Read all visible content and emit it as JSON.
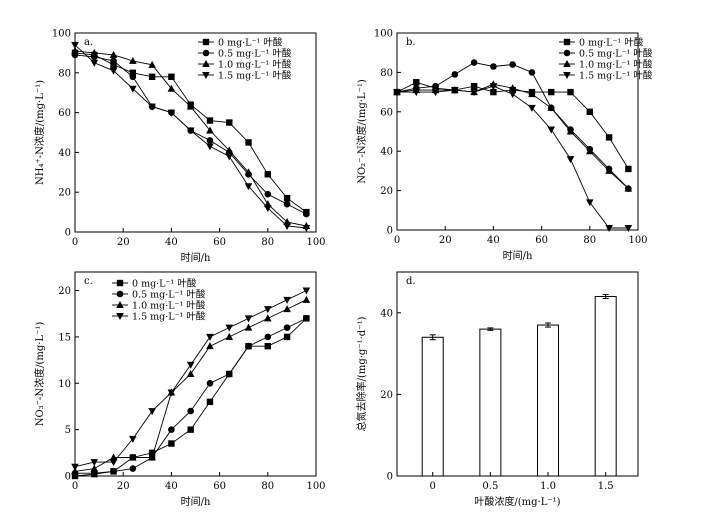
{
  "chart_data": [
    {
      "id": "a",
      "type": "line",
      "panel_label": "a.",
      "xlabel": "时间/h",
      "ylabel": "NH₄⁺-N浓度/(mg·L⁻¹)",
      "xlim": [
        0,
        100
      ],
      "ylim": [
        0,
        100
      ],
      "xticks": [
        0,
        20,
        40,
        60,
        80,
        100
      ],
      "yticks": [
        0,
        20,
        40,
        60,
        80,
        100
      ],
      "series": [
        {
          "name": "0 mg·L⁻¹ 叶酸",
          "marker": "square",
          "x": [
            0,
            8,
            16,
            24,
            32,
            40,
            48,
            56,
            64,
            72,
            80,
            88,
            96
          ],
          "y": [
            90,
            89,
            84,
            80,
            78,
            78,
            64,
            56,
            55,
            45,
            29,
            17,
            10
          ]
        },
        {
          "name": "0.5 mg·L⁻¹ 叶酸",
          "marker": "circle",
          "x": [
            0,
            8,
            16,
            24,
            32,
            40,
            48,
            56,
            64,
            72,
            80,
            88,
            96
          ],
          "y": [
            89,
            88,
            86,
            78,
            63,
            60,
            51,
            46,
            40,
            29,
            19,
            14,
            9
          ]
        },
        {
          "name": "1.0 mg·L⁻¹ 叶酸",
          "marker": "triangle-up",
          "x": [
            0,
            8,
            16,
            24,
            32,
            40,
            48,
            56,
            64,
            72,
            80,
            88,
            96
          ],
          "y": [
            91,
            90,
            89,
            86,
            84,
            72,
            63,
            51,
            41,
            30,
            14,
            5,
            3
          ]
        },
        {
          "name": "1.5 mg·L⁻¹ 叶酸",
          "marker": "triangle-down",
          "x": [
            0,
            8,
            16,
            24,
            32,
            40,
            48,
            56,
            64,
            72,
            80,
            88,
            96
          ],
          "y": [
            94,
            85,
            81,
            72,
            63,
            60,
            51,
            43,
            38,
            23,
            12,
            3,
            2
          ]
        }
      ]
    },
    {
      "id": "b",
      "type": "line",
      "panel_label": "b.",
      "xlabel": "时间/h",
      "ylabel": "NO₂⁻-N浓度/(mg·L⁻¹)",
      "xlim": [
        0,
        100
      ],
      "ylim": [
        0,
        100
      ],
      "xticks": [
        0,
        20,
        40,
        60,
        80,
        100
      ],
      "yticks": [
        0,
        20,
        40,
        60,
        80,
        100
      ],
      "series": [
        {
          "name": "0 mg·L⁻¹ 叶酸",
          "marker": "square",
          "x": [
            0,
            8,
            16,
            24,
            32,
            40,
            48,
            56,
            64,
            72,
            80,
            88,
            96
          ],
          "y": [
            70,
            75,
            72,
            71,
            73,
            70,
            71,
            70,
            70,
            70,
            60,
            47,
            31
          ]
        },
        {
          "name": "0.5 mg·L⁻¹ 叶酸",
          "marker": "circle",
          "x": [
            0,
            8,
            16,
            24,
            32,
            40,
            48,
            56,
            64,
            72,
            80,
            88,
            96
          ],
          "y": [
            70,
            72,
            73,
            79,
            85,
            83,
            84,
            80,
            62,
            51,
            41,
            31,
            21
          ]
        },
        {
          "name": "1.0 mg·L⁻¹ 叶酸",
          "marker": "triangle-up",
          "x": [
            0,
            8,
            16,
            24,
            32,
            40,
            48,
            56,
            64,
            72,
            80,
            88,
            96
          ],
          "y": [
            70,
            71,
            71,
            71,
            70,
            74,
            72,
            69,
            62,
            50,
            40,
            30,
            21
          ]
        },
        {
          "name": "1.5 mg·L⁻¹ 叶酸",
          "marker": "triangle-down",
          "x": [
            0,
            8,
            16,
            24,
            32,
            40,
            48,
            56,
            64,
            72,
            80,
            88,
            96
          ],
          "y": [
            70,
            70,
            70,
            71,
            70,
            73,
            69,
            62,
            51,
            36,
            14,
            1,
            1
          ]
        }
      ]
    },
    {
      "id": "c",
      "type": "line",
      "panel_label": "c.",
      "xlabel": "时间/h",
      "ylabel": "NO₃⁻-N浓度/(mg·L⁻¹)",
      "xlim": [
        0,
        100
      ],
      "ylim": [
        0,
        22
      ],
      "xticks": [
        0,
        20,
        40,
        60,
        80,
        100
      ],
      "yticks": [
        0,
        5,
        10,
        15,
        20
      ],
      "series": [
        {
          "name": "0 mg·L⁻¹ 叶酸",
          "marker": "square",
          "x": [
            0,
            8,
            16,
            24,
            32,
            40,
            48,
            56,
            64,
            72,
            80,
            88,
            96
          ],
          "y": [
            0,
            0.2,
            0.5,
            2,
            2.5,
            3.5,
            5,
            8,
            11,
            14,
            14,
            15,
            17
          ]
        },
        {
          "name": "0.5 mg·L⁻¹ 叶酸",
          "marker": "circle",
          "x": [
            0,
            8,
            16,
            24,
            32,
            40,
            48,
            56,
            64,
            72,
            80,
            88,
            96
          ],
          "y": [
            0.3,
            0.3,
            0.5,
            0.8,
            2,
            5,
            7,
            10,
            11,
            14,
            15,
            16,
            17
          ]
        },
        {
          "name": "1.0 mg·L⁻¹ 叶酸",
          "marker": "triangle-up",
          "x": [
            0,
            8,
            16,
            24,
            32,
            40,
            48,
            56,
            64,
            72,
            80,
            88,
            96
          ],
          "y": [
            0.5,
            0.8,
            2,
            2,
            2,
            9,
            11,
            14,
            15,
            16,
            17,
            18,
            19
          ]
        },
        {
          "name": "1.5 mg·L⁻¹ 叶酸",
          "marker": "triangle-down",
          "x": [
            0,
            8,
            16,
            24,
            32,
            40,
            48,
            56,
            64,
            72,
            80,
            88,
            96
          ],
          "y": [
            1,
            1.5,
            1.5,
            4,
            7,
            9,
            12,
            15,
            16,
            17,
            18,
            19,
            20
          ]
        }
      ]
    },
    {
      "id": "d",
      "type": "bar",
      "panel_label": "d.",
      "xlabel": "叶酸浓度/(mg·L⁻¹)",
      "ylabel": "总氮去除率/(mg·g⁻¹·d⁻¹)",
      "categories": [
        "0",
        "0.5",
        "1.0",
        "1.5"
      ],
      "values": [
        34,
        36,
        37,
        44
      ],
      "errors": [
        0.6,
        0.3,
        0.5,
        0.5
      ],
      "ylim": [
        0,
        50
      ],
      "yticks": [
        0,
        20,
        40
      ]
    }
  ]
}
